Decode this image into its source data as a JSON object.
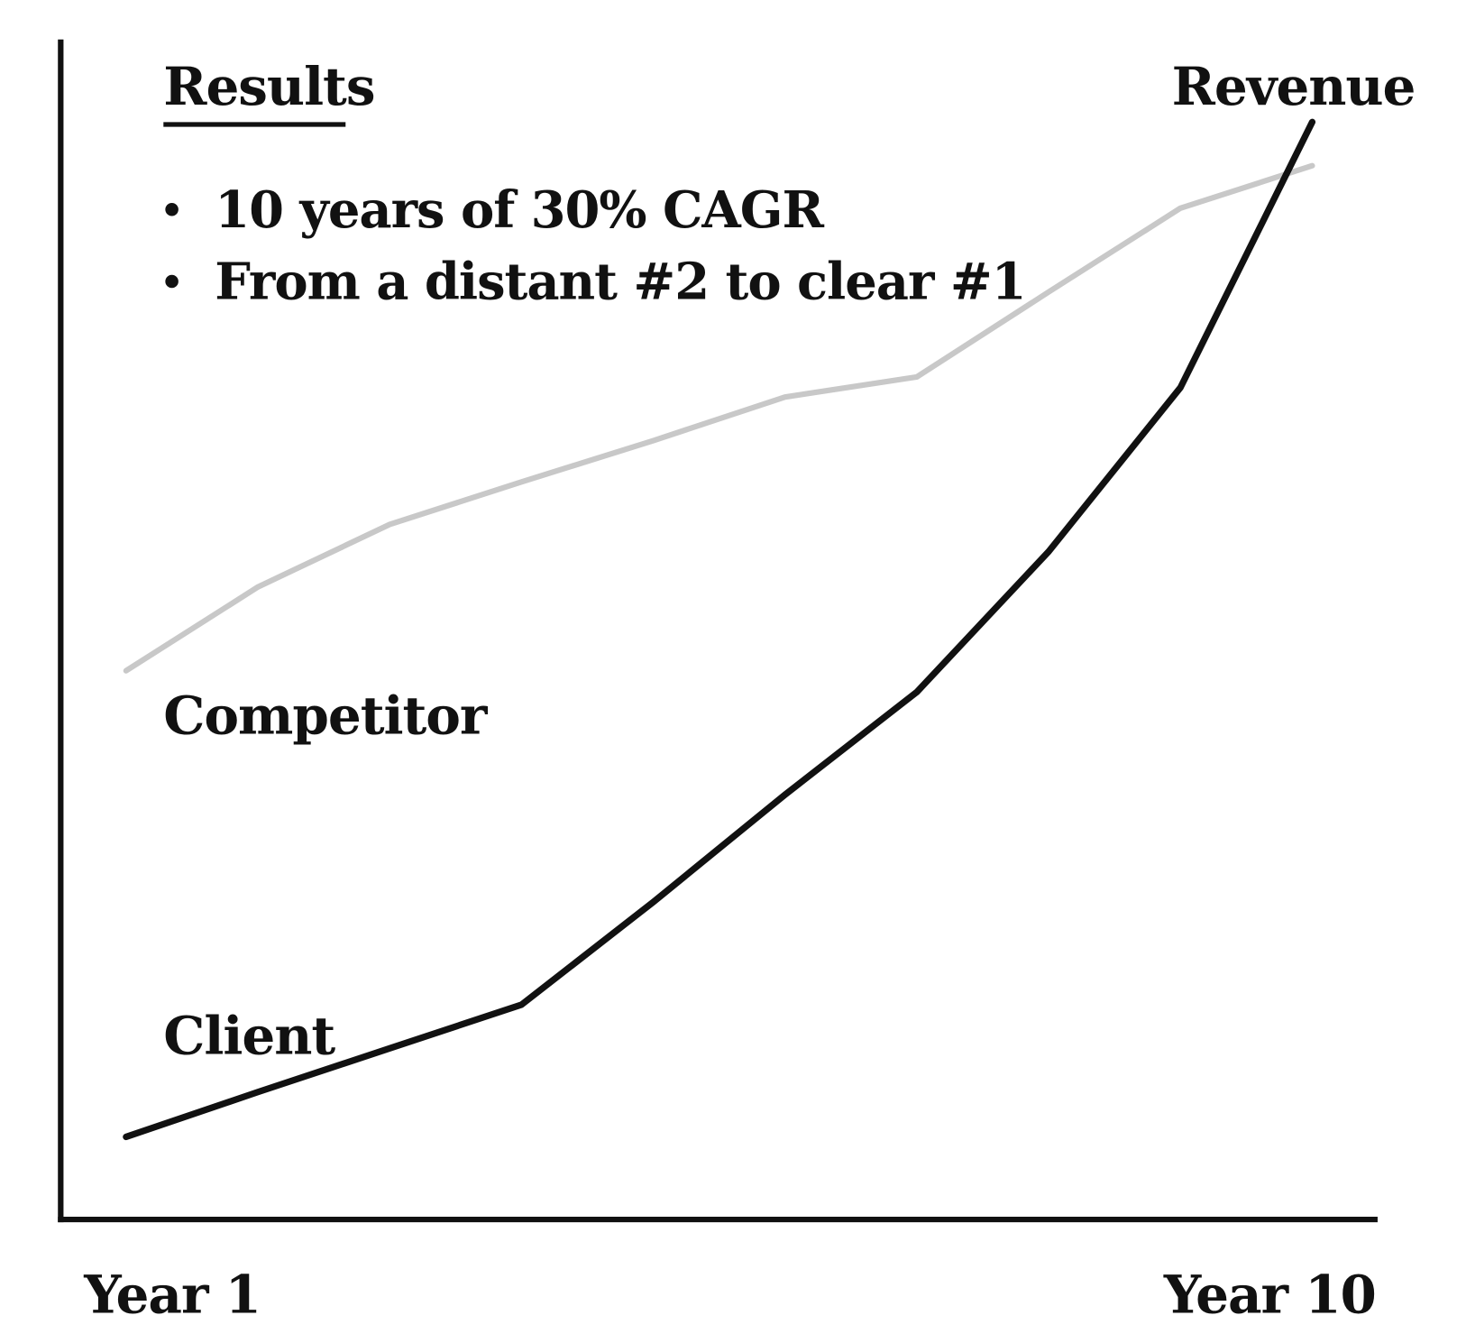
{
  "chart_data": {
    "type": "line",
    "title": "Results",
    "annotations": [
      "10 years of 30% CAGR",
      "From a distant #2 to clear #1"
    ],
    "y_label": "Revenue",
    "categories": [
      "Year 1",
      null,
      null,
      null,
      null,
      null,
      null,
      null,
      null,
      "Year 10"
    ],
    "ylim": [
      0,
      100
    ],
    "series": [
      {
        "name": "Competitor",
        "color": "#c8c8c8",
        "values": [
          46.5,
          53.6,
          58.9,
          62.5,
          66.0,
          69.7,
          71.4,
          78.6,
          85.7,
          89.3
        ]
      },
      {
        "name": "Client",
        "color": "#111111",
        "values": [
          7.0,
          10.8,
          14.5,
          18.2,
          26.9,
          36.0,
          44.7,
          56.6,
          70.5,
          93.0
        ]
      }
    ]
  }
}
